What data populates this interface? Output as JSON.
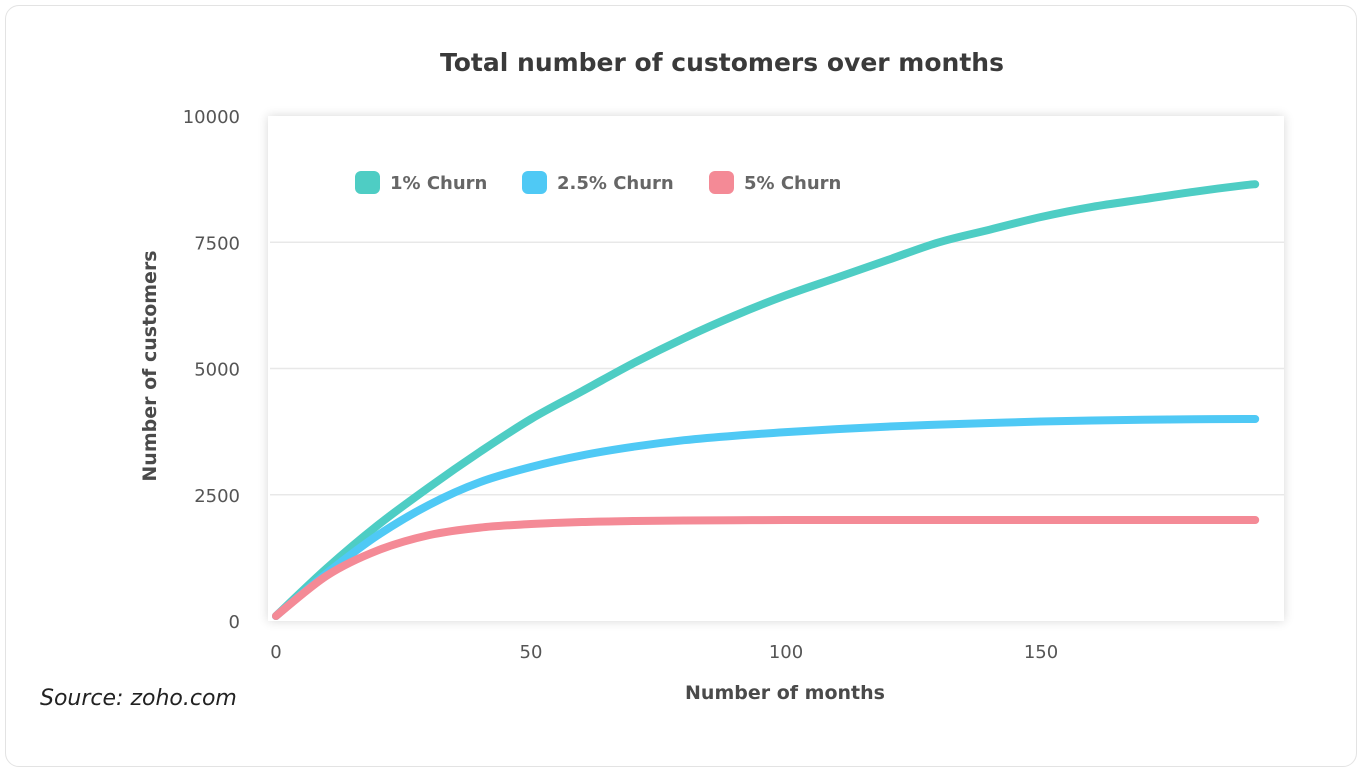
{
  "chart_data": {
    "type": "line",
    "title": "Total number of customers over months",
    "xlabel": "Number of months",
    "ylabel": "Number of customers",
    "xlim": [
      0,
      195
    ],
    "ylim": [
      0,
      10000
    ],
    "xticks": [
      0,
      50,
      100,
      150
    ],
    "yticks": [
      0,
      2500,
      5000,
      7500,
      10000
    ],
    "x": [
      0,
      10,
      20,
      30,
      40,
      50,
      60,
      70,
      80,
      90,
      100,
      110,
      120,
      130,
      140,
      150,
      160,
      170,
      180,
      190,
      192
    ],
    "series": [
      {
        "name": "1% Churn",
        "color": "#4ecdc4",
        "values": [
          100,
          1050,
          1900,
          2650,
          3350,
          4000,
          4550,
          5100,
          5600,
          6050,
          6450,
          6800,
          7150,
          7500,
          7750,
          8000,
          8200,
          8350,
          8500,
          8630,
          8650
        ]
      },
      {
        "name": "2.5% Churn",
        "color": "#4fc9f5",
        "values": [
          100,
          950,
          1700,
          2300,
          2750,
          3050,
          3280,
          3450,
          3580,
          3670,
          3740,
          3800,
          3850,
          3890,
          3920,
          3950,
          3970,
          3985,
          3995,
          4000,
          4000
        ]
      },
      {
        "name": "5% Churn",
        "color": "#f48a96",
        "values": [
          100,
          900,
          1400,
          1700,
          1850,
          1920,
          1960,
          1980,
          1990,
          1995,
          2000,
          2000,
          2000,
          2000,
          2000,
          2000,
          2000,
          2000,
          2000,
          2000,
          2000
        ]
      }
    ],
    "grid": "horizontal",
    "legend_position": "top-left"
  },
  "source": "Source: zoho.com"
}
